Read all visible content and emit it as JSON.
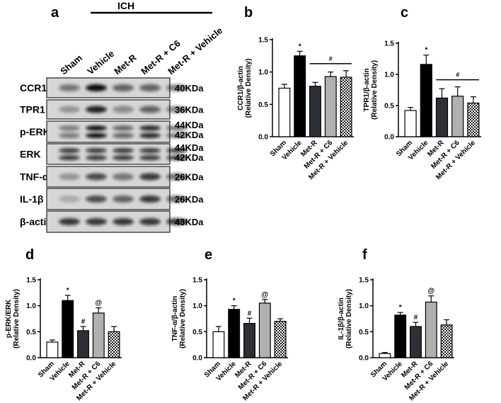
{
  "blot": {
    "panel": "a",
    "group": "ICH",
    "lanes": [
      "Sham",
      "Vehicle",
      "Met-R",
      "Met-R + C6",
      "Met-R + Vehicle"
    ],
    "rows": [
      {
        "label": "CCR1",
        "sizes": [
          "40KDa"
        ]
      },
      {
        "label": "TPR1",
        "sizes": [
          "36KDa"
        ]
      },
      {
        "label": "p-ERK",
        "sizes": [
          "44KDa",
          "42KDa"
        ]
      },
      {
        "label": "ERK",
        "sizes": [
          "44KDa",
          "42KDa"
        ]
      },
      {
        "label": "TNF-α",
        "sizes": [
          "26KDa"
        ]
      },
      {
        "label": "IL-1β",
        "sizes": [
          "26KDa"
        ]
      },
      {
        "label": "β-actin",
        "sizes": [
          "43KDa"
        ]
      }
    ]
  },
  "chart_data": [
    {
      "type": "bar",
      "panel": "b",
      "ylabel": [
        "CCR1/β-actin",
        "(Relative Density)"
      ],
      "categories": [
        "Sham",
        "Vehicle",
        "Met-R",
        "Met-R + C6",
        "Met-R + Vehicle"
      ],
      "values": [
        0.75,
        1.25,
        0.78,
        0.93,
        0.92
      ],
      "errors": [
        0.06,
        0.07,
        0.06,
        0.07,
        0.1
      ],
      "colors": [
        "#ffffff",
        "#000000",
        "#2e3038",
        "#b0b0b0",
        "#ffffff"
      ],
      "hatch": [
        false,
        false,
        false,
        false,
        true
      ],
      "markers": [
        null,
        "*",
        null,
        null,
        null
      ],
      "group_marker": "#",
      "ylim": [
        0,
        1.5
      ],
      "yticks": [
        {
          "value": 0,
          "label": "0.0"
        },
        0.5,
        {
          "value": 1,
          "label": "1.0"
        },
        1.5
      ]
    },
    {
      "type": "bar",
      "panel": "c",
      "ylabel": [
        "TPR1/β-actin",
        "(Relative Density)"
      ],
      "categories": [
        "Sham",
        "Vehicle",
        "Met-R",
        "Met-R + C6",
        "Met-R + Vehicle"
      ],
      "values": [
        0.42,
        1.16,
        0.62,
        0.65,
        0.54
      ],
      "errors": [
        0.05,
        0.15,
        0.15,
        0.15,
        0.1
      ],
      "colors": [
        "#ffffff",
        "#000000",
        "#2e3038",
        "#b0b0b0",
        "#ffffff"
      ],
      "hatch": [
        false,
        false,
        false,
        false,
        true
      ],
      "markers": [
        null,
        "*",
        null,
        null,
        null
      ],
      "group_marker": "#",
      "ylim": [
        0,
        1.5
      ],
      "yticks": [
        {
          "value": 0,
          "label": "0.0"
        },
        0.5,
        {
          "value": 1,
          "label": "1.0"
        },
        1.5
      ]
    },
    {
      "type": "bar",
      "panel": "d",
      "ylabel": [
        "p-ERK/ERK",
        "(Relative Density)"
      ],
      "categories": [
        "Sham",
        "Vehicle",
        "Met-R",
        "Met-R + C6",
        "Met-R + Vehicle"
      ],
      "values": [
        0.3,
        1.1,
        0.52,
        0.86,
        0.5
      ],
      "errors": [
        0.04,
        0.1,
        0.08,
        0.1,
        0.1
      ],
      "colors": [
        "#ffffff",
        "#000000",
        "#2e3038",
        "#b0b0b0",
        "#ffffff"
      ],
      "hatch": [
        false,
        false,
        false,
        false,
        true
      ],
      "markers": [
        null,
        "*",
        "#",
        "@",
        null
      ],
      "ylim": [
        0,
        1.5
      ],
      "yticks": [
        {
          "value": 0,
          "label": "0.0"
        },
        0.5,
        {
          "value": 1,
          "label": "1.0"
        },
        1.5
      ]
    },
    {
      "type": "bar",
      "panel": "e",
      "ylabel": [
        "TNF-α/β-actin",
        "(Relative Density)"
      ],
      "categories": [
        "Sham",
        "Vehicle",
        "Met-R",
        "Met-R + C6",
        "Met-R + Vehicle"
      ],
      "values": [
        0.5,
        0.93,
        0.66,
        1.05,
        0.7
      ],
      "errors": [
        0.1,
        0.07,
        0.1,
        0.07,
        0.05
      ],
      "colors": [
        "#ffffff",
        "#000000",
        "#2e3038",
        "#b0b0b0",
        "#ffffff"
      ],
      "hatch": [
        false,
        false,
        false,
        false,
        true
      ],
      "markers": [
        null,
        "*",
        "#",
        "@",
        null
      ],
      "ylim": [
        0,
        1.5
      ],
      "yticks": [
        {
          "value": 0,
          "label": "0.0"
        },
        0.5,
        {
          "value": 1,
          "label": "1.0"
        },
        1.5
      ]
    },
    {
      "type": "bar",
      "panel": "f",
      "ylabel": [
        "IL-1β/β-actin",
        "(Relative Density)"
      ],
      "categories": [
        "Sham",
        "Vehicle",
        "Met-R",
        "Met-R + C6",
        "Met-R + Vehicle"
      ],
      "values": [
        0.08,
        0.82,
        0.6,
        1.07,
        0.63
      ],
      "errors": [
        0.02,
        0.05,
        0.08,
        0.12,
        0.1
      ],
      "colors": [
        "#ffffff",
        "#000000",
        "#2e3038",
        "#b0b0b0",
        "#ffffff"
      ],
      "hatch": [
        false,
        false,
        false,
        false,
        true
      ],
      "markers": [
        null,
        "*",
        "#",
        "@",
        null
      ],
      "ylim": [
        0,
        1.5
      ],
      "yticks": [
        {
          "value": 0,
          "label": "0.0"
        },
        0.5,
        {
          "value": 1,
          "label": "1.0"
        },
        1.5
      ]
    }
  ]
}
